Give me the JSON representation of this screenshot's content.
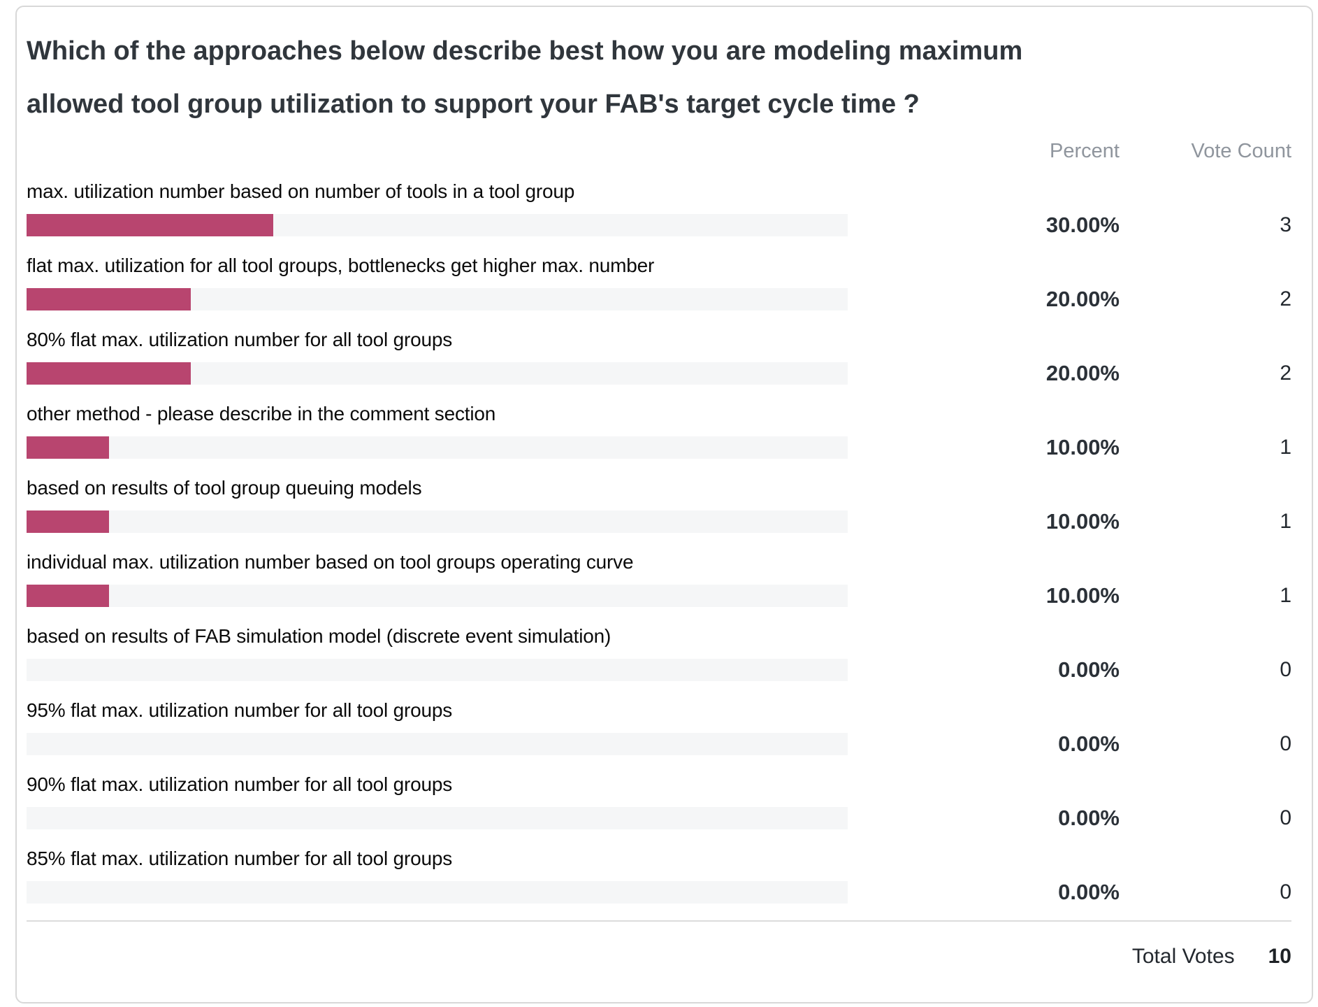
{
  "poll": {
    "question": "Which of the approaches below describe best how you are modeling maximum allowed tool group utilization to support your FAB's target cycle time ?",
    "columns": {
      "percent": "Percent",
      "vote_count": "Vote Count"
    },
    "results": [
      {
        "label": "max. utilization number based on number of tools in a tool group",
        "percent": "30.00%",
        "value": 30,
        "votes": "3"
      },
      {
        "label": "flat max. utilization for all tool groups, bottlenecks get higher max. number",
        "percent": "20.00%",
        "value": 20,
        "votes": "2"
      },
      {
        "label": "80% flat max. utilization number for all tool groups",
        "percent": "20.00%",
        "value": 20,
        "votes": "2"
      },
      {
        "label": "other method - please describe in the comment section",
        "percent": "10.00%",
        "value": 10,
        "votes": "1"
      },
      {
        "label": "based on results of tool group queuing models",
        "percent": "10.00%",
        "value": 10,
        "votes": "1"
      },
      {
        "label": "individual max. utilization number based on tool groups operating curve",
        "percent": "10.00%",
        "value": 10,
        "votes": "1"
      },
      {
        "label": "based on results of FAB simulation model (discrete event simulation)",
        "percent": "0.00%",
        "value": 0,
        "votes": "0"
      },
      {
        "label": "95% flat max. utilization number for all tool groups",
        "percent": "0.00%",
        "value": 0,
        "votes": "0"
      },
      {
        "label": "90% flat max. utilization number for all tool groups",
        "percent": "0.00%",
        "value": 0,
        "votes": "0"
      },
      {
        "label": "85% flat max. utilization number for all tool groups",
        "percent": "0.00%",
        "value": 0,
        "votes": "0"
      }
    ],
    "footer": {
      "label": "Total Votes",
      "total": "10"
    }
  },
  "colors": {
    "bar_fill": "#b8456f",
    "bar_track": "#f5f6f7",
    "title_text": "#30363c",
    "header_text": "#8f959d"
  },
  "chart_data": {
    "type": "bar",
    "orientation": "horizontal",
    "title": "Which of the approaches below describe best how you are modeling maximum allowed tool group utilization to support your FAB's target cycle time ?",
    "categories": [
      "max. utilization number based on number of tools in a tool group",
      "flat max. utilization for all tool groups, bottlenecks get higher max. number",
      "80% flat max. utilization number for all tool groups",
      "other method - please describe in the comment section",
      "based on results of tool group queuing models",
      "individual max. utilization number based on tool groups operating curve",
      "based on results of FAB simulation model (discrete event simulation)",
      "95% flat max. utilization number for all tool groups",
      "90% flat max. utilization number for all tool groups",
      "85% flat max. utilization number for all tool groups"
    ],
    "series": [
      {
        "name": "Percent",
        "values": [
          30.0,
          20.0,
          20.0,
          10.0,
          10.0,
          10.0,
          0.0,
          0.0,
          0.0,
          0.0
        ]
      },
      {
        "name": "Vote Count",
        "values": [
          3,
          2,
          2,
          1,
          1,
          1,
          0,
          0,
          0,
          0
        ]
      }
    ],
    "xlim": [
      0,
      100
    ],
    "total_votes": 10,
    "grid": false,
    "legend_position": "none"
  }
}
